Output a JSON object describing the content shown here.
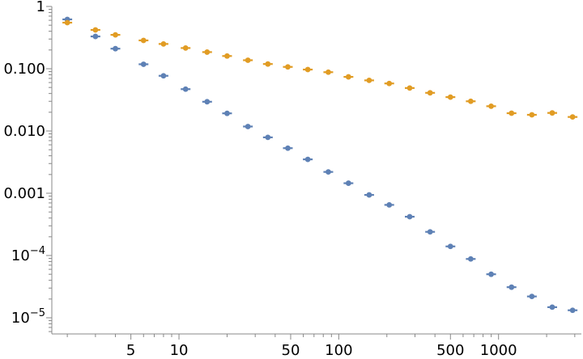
{
  "chart_data": {
    "type": "scatter",
    "title": "",
    "xlabel": "",
    "ylabel": "",
    "x_scale": "log",
    "y_scale": "log",
    "xlim": [
      1.6,
      3300
    ],
    "ylim": [
      5.5e-06,
      1.0
    ],
    "grid": false,
    "x_tick_labels": [
      {
        "value": 5,
        "label": "5"
      },
      {
        "value": 10,
        "label": "10"
      },
      {
        "value": 50,
        "label": "50"
      },
      {
        "value": 100,
        "label": "100"
      },
      {
        "value": 500,
        "label": "500"
      },
      {
        "value": 1000,
        "label": "1000"
      }
    ],
    "y_tick_labels": [
      {
        "value": 1,
        "label": "1"
      },
      {
        "value": 0.1,
        "label": "0.100"
      },
      {
        "value": 0.01,
        "label": "0.010"
      },
      {
        "value": 0.001,
        "label": "0.001"
      },
      {
        "value": 0.0001,
        "label": "10",
        "exponent": "−4"
      },
      {
        "value": 1e-05,
        "label": "10",
        "exponent": "−5"
      }
    ],
    "x": [
      2,
      3,
      4,
      6,
      8,
      11,
      15,
      20,
      27,
      36,
      48,
      64,
      86,
      115,
      155,
      207,
      278,
      373,
      500,
      670,
      899,
      1206,
      1617,
      2168,
      2907
    ],
    "series": [
      {
        "color": "#5e81b5",
        "values": [
          0.62,
          0.33,
          0.21,
          0.118,
          0.077,
          0.047,
          0.0295,
          0.0192,
          0.0118,
          0.0079,
          0.0053,
          0.0035,
          0.0022,
          0.00145,
          0.00094,
          0.00065,
          0.00042,
          0.00024,
          0.00014,
          8.8e-05,
          5e-05,
          3.1e-05,
          2.2e-05,
          1.48e-05,
          1.32e-05
        ]
      },
      {
        "color": "#e19c24",
        "values": [
          0.55,
          0.42,
          0.35,
          0.285,
          0.25,
          0.215,
          0.185,
          0.16,
          0.137,
          0.119,
          0.107,
          0.097,
          0.088,
          0.074,
          0.065,
          0.058,
          0.049,
          0.041,
          0.035,
          0.03,
          0.025,
          0.0193,
          0.0182,
          0.0195,
          0.0168
        ]
      }
    ]
  }
}
